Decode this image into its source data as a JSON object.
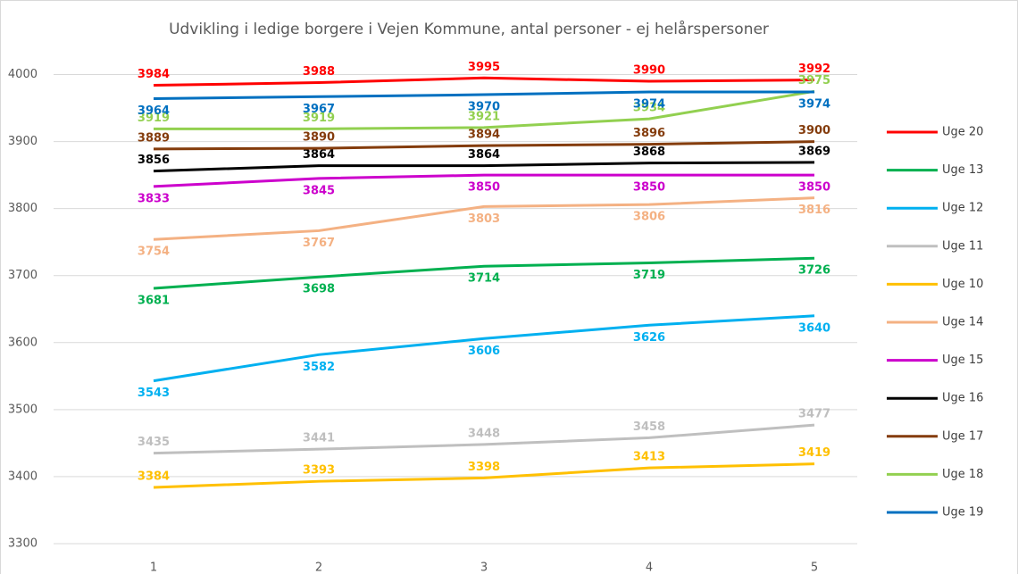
{
  "chart_data": {
    "type": "line",
    "title": "Udvikling i ledige borgere i Vejen Kommune, antal personer - ej helårspersoner",
    "categories": [
      "1",
      "2",
      "3",
      "4",
      "5"
    ],
    "ylim": [
      3300,
      4050
    ],
    "yticks": [
      3300,
      3400,
      3500,
      3600,
      3700,
      3800,
      3900,
      4000
    ],
    "grid": true,
    "series": [
      {
        "name": "Uge 20",
        "color": "#ff0000",
        "values": [
          3984,
          3988,
          3995,
          3990,
          3992
        ]
      },
      {
        "name": "Uge 13",
        "color": "#00b050",
        "values": [
          3681,
          3698,
          3714,
          3719,
          3726
        ]
      },
      {
        "name": "Uge 12",
        "color": "#00b0f0",
        "values": [
          3543,
          3582,
          3606,
          3626,
          3640
        ]
      },
      {
        "name": "Uge 11",
        "color": "#bfbfbf",
        "values": [
          3435,
          3441,
          3448,
          3458,
          3477
        ]
      },
      {
        "name": "Uge 10",
        "color": "#ffc000",
        "values": [
          3384,
          3393,
          3398,
          3413,
          3419
        ]
      },
      {
        "name": "Uge 14",
        "color": "#f4b183",
        "values": [
          3754,
          3767,
          3803,
          3806,
          3816
        ]
      },
      {
        "name": "Uge 15",
        "color": "#cc00cc",
        "values": [
          3833,
          3845,
          3850,
          3850,
          3850
        ]
      },
      {
        "name": "Uge 16",
        "color": "#000000",
        "values": [
          3856,
          3864,
          3864,
          3868,
          3869
        ]
      },
      {
        "name": "Uge 17",
        "color": "#843c0c",
        "values": [
          3889,
          3890,
          3894,
          3896,
          3900
        ]
      },
      {
        "name": "Uge 18",
        "color": "#92d050",
        "values": [
          3919,
          3919,
          3921,
          3934,
          3975
        ]
      },
      {
        "name": "Uge 19",
        "color": "#0070c0",
        "values": [
          3964,
          3967,
          3970,
          3974,
          3974
        ]
      }
    ]
  }
}
